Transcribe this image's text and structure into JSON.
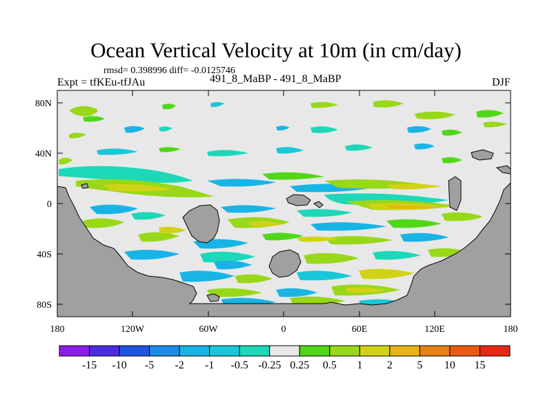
{
  "title": "Ocean Vertical Velocity at 10m (in cm/day)",
  "stats": {
    "rmsd_label": "rmsd=",
    "rmsd": "0.398996",
    "diff_label": "diff=",
    "diff": "-0.0125746"
  },
  "left_label": "Expt = tfKEu-tfJAu",
  "center_label": "491_8_MaBP - 491_8_MaBP",
  "right_label": "DJF",
  "lat_ticks": [
    "80N",
    "40N",
    "0",
    "40S",
    "80S"
  ],
  "lon_ticks": [
    "180",
    "120W",
    "60W",
    "0",
    "60E",
    "120E",
    "180"
  ],
  "colorbar": {
    "labels": [
      "-15",
      "-10",
      "-5",
      "-2",
      "-1",
      "-0.5",
      "-0.25",
      "0.25",
      "0.5",
      "1",
      "2",
      "5",
      "10",
      "15"
    ],
    "colors": [
      "#8a1ce8",
      "#4a2de0",
      "#1e55e0",
      "#1a8ce8",
      "#18b4e6",
      "#18c8d8",
      "#1cd8b8",
      "#e8e8e8",
      "#50d818",
      "#98d818",
      "#d2d214",
      "#e8b414",
      "#e88014",
      "#e85a14",
      "#e82814"
    ]
  },
  "map_colors": {
    "land": "#a0a0a0",
    "ocean": "#e8e8e8"
  }
}
